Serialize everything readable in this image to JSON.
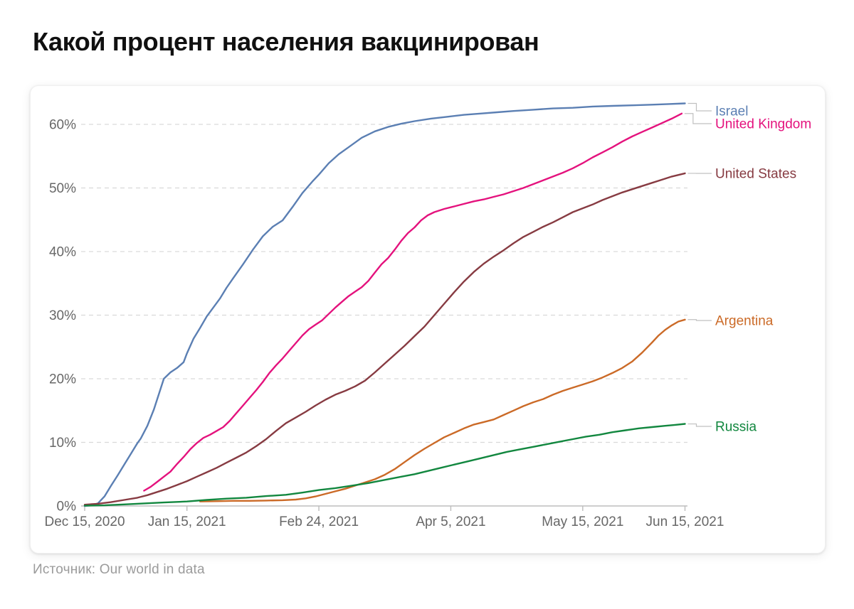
{
  "page": {
    "title": "Какой процент населения вакцинирован",
    "source_prefix": "Источник:",
    "source_text": "Our world in data"
  },
  "chart_data": {
    "type": "line",
    "title": "Какой процент населения вакцинирован",
    "source": "Our world in data",
    "y_unit": "%",
    "ylim": [
      0,
      65
    ],
    "grid": "horizontal-dashed",
    "legend_position": "right-edge-labels",
    "x_day_zero": "Dec 15, 2020",
    "x_ticks": [
      {
        "label": "Dec 15, 2020",
        "day": 0
      },
      {
        "label": "Jan 15, 2021",
        "day": 31
      },
      {
        "label": "Feb 24, 2021",
        "day": 71
      },
      {
        "label": "Apr 5, 2021",
        "day": 111
      },
      {
        "label": "May 15, 2021",
        "day": 151
      },
      {
        "label": "Jun 15, 2021",
        "day": 182
      }
    ],
    "y_ticks": [
      {
        "label": "0%",
        "value": 0
      },
      {
        "label": "10%",
        "value": 10
      },
      {
        "label": "20%",
        "value": 20
      },
      {
        "label": "30%",
        "value": 30
      },
      {
        "label": "40%",
        "value": 40
      },
      {
        "label": "50%",
        "value": 50
      },
      {
        "label": "60%",
        "value": 60
      }
    ],
    "colors": {
      "axis_text": "#676767",
      "gridline": "#d9d9d9",
      "axis_line": "#bdbdbd",
      "connector": "#c0c0c0"
    },
    "series": [
      {
        "name": "Israel",
        "color": "#5b7fb3",
        "end_value": 63.3,
        "points": [
          [
            0,
            0
          ],
          [
            2,
            0.1
          ],
          [
            4,
            0.4
          ],
          [
            6,
            1.5
          ],
          [
            8,
            3.2
          ],
          [
            10,
            4.8
          ],
          [
            12,
            6.5
          ],
          [
            14,
            8.2
          ],
          [
            16,
            9.9
          ],
          [
            17,
            10.6
          ],
          [
            19,
            12.6
          ],
          [
            21,
            15.2
          ],
          [
            23,
            18.4
          ],
          [
            24,
            20.0
          ],
          [
            26,
            21.0
          ],
          [
            28,
            21.7
          ],
          [
            30,
            22.6
          ],
          [
            31,
            24.0
          ],
          [
            33,
            26.3
          ],
          [
            35,
            28.0
          ],
          [
            37,
            29.8
          ],
          [
            39,
            31.2
          ],
          [
            41,
            32.6
          ],
          [
            43,
            34.3
          ],
          [
            45,
            35.8
          ],
          [
            48,
            38.0
          ],
          [
            51,
            40.3
          ],
          [
            54,
            42.4
          ],
          [
            57,
            43.9
          ],
          [
            60,
            44.9
          ],
          [
            63,
            47.0
          ],
          [
            66,
            49.2
          ],
          [
            69,
            51.0
          ],
          [
            71,
            52.1
          ],
          [
            74,
            53.9
          ],
          [
            77,
            55.3
          ],
          [
            80,
            56.4
          ],
          [
            84,
            57.9
          ],
          [
            88,
            58.9
          ],
          [
            92,
            59.6
          ],
          [
            96,
            60.1
          ],
          [
            100,
            60.5
          ],
          [
            105,
            60.9
          ],
          [
            110,
            61.2
          ],
          [
            115,
            61.5
          ],
          [
            120,
            61.7
          ],
          [
            125,
            61.9
          ],
          [
            130,
            62.1
          ],
          [
            136,
            62.3
          ],
          [
            142,
            62.5
          ],
          [
            148,
            62.6
          ],
          [
            154,
            62.8
          ],
          [
            160,
            62.9
          ],
          [
            166,
            63.0
          ],
          [
            172,
            63.1
          ],
          [
            177,
            63.2
          ],
          [
            182,
            63.3
          ]
        ]
      },
      {
        "name": "United Kingdom",
        "color": "#e4127d",
        "end_value": 61.7,
        "points": [
          [
            18,
            2.4
          ],
          [
            20,
            3.0
          ],
          [
            22,
            3.8
          ],
          [
            24,
            4.6
          ],
          [
            26,
            5.4
          ],
          [
            28,
            6.6
          ],
          [
            30,
            7.7
          ],
          [
            32,
            8.9
          ],
          [
            34,
            9.9
          ],
          [
            36,
            10.7
          ],
          [
            38,
            11.2
          ],
          [
            40,
            11.8
          ],
          [
            42,
            12.4
          ],
          [
            44,
            13.4
          ],
          [
            46,
            14.6
          ],
          [
            48,
            15.8
          ],
          [
            50,
            17.0
          ],
          [
            52,
            18.2
          ],
          [
            54,
            19.5
          ],
          [
            56,
            20.9
          ],
          [
            58,
            22.1
          ],
          [
            60,
            23.2
          ],
          [
            62,
            24.4
          ],
          [
            64,
            25.6
          ],
          [
            66,
            26.8
          ],
          [
            68,
            27.8
          ],
          [
            70,
            28.5
          ],
          [
            72,
            29.2
          ],
          [
            74,
            30.2
          ],
          [
            76,
            31.2
          ],
          [
            78,
            32.1
          ],
          [
            80,
            33.0
          ],
          [
            82,
            33.7
          ],
          [
            84,
            34.4
          ],
          [
            86,
            35.4
          ],
          [
            88,
            36.7
          ],
          [
            90,
            38.0
          ],
          [
            92,
            39.0
          ],
          [
            94,
            40.3
          ],
          [
            96,
            41.7
          ],
          [
            98,
            42.9
          ],
          [
            100,
            43.8
          ],
          [
            102,
            44.9
          ],
          [
            104,
            45.7
          ],
          [
            106,
            46.2
          ],
          [
            109,
            46.7
          ],
          [
            112,
            47.1
          ],
          [
            115,
            47.5
          ],
          [
            118,
            47.9
          ],
          [
            121,
            48.2
          ],
          [
            124,
            48.6
          ],
          [
            127,
            49.0
          ],
          [
            130,
            49.5
          ],
          [
            133,
            50.0
          ],
          [
            136,
            50.6
          ],
          [
            139,
            51.2
          ],
          [
            142,
            51.8
          ],
          [
            145,
            52.4
          ],
          [
            148,
            53.1
          ],
          [
            151,
            53.9
          ],
          [
            154,
            54.8
          ],
          [
            157,
            55.6
          ],
          [
            160,
            56.4
          ],
          [
            163,
            57.3
          ],
          [
            166,
            58.1
          ],
          [
            169,
            58.8
          ],
          [
            172,
            59.5
          ],
          [
            175,
            60.2
          ],
          [
            178,
            60.9
          ],
          [
            181,
            61.7
          ]
        ]
      },
      {
        "name": "United States",
        "color": "#873b42",
        "end_value": 52.3,
        "points": [
          [
            0,
            0.2
          ],
          [
            4,
            0.35
          ],
          [
            8,
            0.6
          ],
          [
            12,
            0.95
          ],
          [
            16,
            1.3
          ],
          [
            19,
            1.7
          ],
          [
            22,
            2.2
          ],
          [
            25,
            2.7
          ],
          [
            28,
            3.3
          ],
          [
            31,
            3.9
          ],
          [
            34,
            4.6
          ],
          [
            37,
            5.3
          ],
          [
            40,
            6.0
          ],
          [
            43,
            6.8
          ],
          [
            46,
            7.6
          ],
          [
            49,
            8.4
          ],
          [
            52,
            9.4
          ],
          [
            55,
            10.5
          ],
          [
            58,
            11.8
          ],
          [
            61,
            13.0
          ],
          [
            64,
            13.9
          ],
          [
            67,
            14.8
          ],
          [
            70,
            15.8
          ],
          [
            73,
            16.7
          ],
          [
            76,
            17.5
          ],
          [
            79,
            18.1
          ],
          [
            82,
            18.8
          ],
          [
            85,
            19.7
          ],
          [
            88,
            21.0
          ],
          [
            91,
            22.4
          ],
          [
            94,
            23.8
          ],
          [
            97,
            25.2
          ],
          [
            100,
            26.7
          ],
          [
            103,
            28.2
          ],
          [
            106,
            30.0
          ],
          [
            109,
            31.8
          ],
          [
            112,
            33.6
          ],
          [
            115,
            35.3
          ],
          [
            118,
            36.8
          ],
          [
            121,
            38.1
          ],
          [
            124,
            39.2
          ],
          [
            127,
            40.2
          ],
          [
            130,
            41.3
          ],
          [
            133,
            42.3
          ],
          [
            136,
            43.1
          ],
          [
            139,
            43.9
          ],
          [
            142,
            44.6
          ],
          [
            145,
            45.4
          ],
          [
            148,
            46.2
          ],
          [
            151,
            46.8
          ],
          [
            154,
            47.4
          ],
          [
            157,
            48.1
          ],
          [
            160,
            48.7
          ],
          [
            163,
            49.3
          ],
          [
            166,
            49.8
          ],
          [
            169,
            50.3
          ],
          [
            172,
            50.8
          ],
          [
            175,
            51.3
          ],
          [
            178,
            51.8
          ],
          [
            182,
            52.3
          ]
        ]
      },
      {
        "name": "Argentina",
        "color": "#cb6a27",
        "end_value": 29.3,
        "points": [
          [
            35,
            0.7
          ],
          [
            40,
            0.75
          ],
          [
            45,
            0.8
          ],
          [
            50,
            0.8
          ],
          [
            55,
            0.85
          ],
          [
            60,
            0.9
          ],
          [
            64,
            1.0
          ],
          [
            67,
            1.2
          ],
          [
            70,
            1.5
          ],
          [
            73,
            1.9
          ],
          [
            76,
            2.3
          ],
          [
            79,
            2.7
          ],
          [
            82,
            3.2
          ],
          [
            85,
            3.7
          ],
          [
            88,
            4.2
          ],
          [
            91,
            4.9
          ],
          [
            94,
            5.8
          ],
          [
            97,
            6.9
          ],
          [
            100,
            8.0
          ],
          [
            103,
            9.0
          ],
          [
            106,
            9.9
          ],
          [
            109,
            10.8
          ],
          [
            112,
            11.5
          ],
          [
            115,
            12.2
          ],
          [
            118,
            12.8
          ],
          [
            121,
            13.2
          ],
          [
            124,
            13.6
          ],
          [
            127,
            14.3
          ],
          [
            130,
            15.0
          ],
          [
            133,
            15.7
          ],
          [
            136,
            16.3
          ],
          [
            139,
            16.8
          ],
          [
            142,
            17.5
          ],
          [
            145,
            18.1
          ],
          [
            148,
            18.6
          ],
          [
            151,
            19.1
          ],
          [
            154,
            19.6
          ],
          [
            157,
            20.2
          ],
          [
            160,
            20.9
          ],
          [
            163,
            21.7
          ],
          [
            166,
            22.7
          ],
          [
            169,
            24.1
          ],
          [
            172,
            25.7
          ],
          [
            174,
            26.8
          ],
          [
            176,
            27.7
          ],
          [
            178,
            28.4
          ],
          [
            180,
            29.0
          ],
          [
            182,
            29.3
          ]
        ]
      },
      {
        "name": "Russia",
        "color": "#12873f",
        "end_value": 12.9,
        "points": [
          [
            0,
            0.05
          ],
          [
            6,
            0.1
          ],
          [
            12,
            0.25
          ],
          [
            18,
            0.4
          ],
          [
            24,
            0.55
          ],
          [
            31,
            0.7
          ],
          [
            37,
            0.95
          ],
          [
            43,
            1.15
          ],
          [
            49,
            1.3
          ],
          [
            55,
            1.55
          ],
          [
            61,
            1.75
          ],
          [
            66,
            2.1
          ],
          [
            71,
            2.5
          ],
          [
            76,
            2.8
          ],
          [
            81,
            3.2
          ],
          [
            86,
            3.6
          ],
          [
            91,
            4.1
          ],
          [
            96,
            4.6
          ],
          [
            100,
            5.0
          ],
          [
            104,
            5.5
          ],
          [
            108,
            6.0
          ],
          [
            112,
            6.5
          ],
          [
            116,
            7.0
          ],
          [
            120,
            7.5
          ],
          [
            124,
            8.0
          ],
          [
            128,
            8.5
          ],
          [
            132,
            8.9
          ],
          [
            136,
            9.3
          ],
          [
            140,
            9.7
          ],
          [
            144,
            10.1
          ],
          [
            148,
            10.5
          ],
          [
            152,
            10.9
          ],
          [
            156,
            11.2
          ],
          [
            160,
            11.6
          ],
          [
            164,
            11.9
          ],
          [
            168,
            12.2
          ],
          [
            172,
            12.4
          ],
          [
            176,
            12.6
          ],
          [
            179,
            12.75
          ],
          [
            182,
            12.9
          ]
        ]
      }
    ]
  }
}
